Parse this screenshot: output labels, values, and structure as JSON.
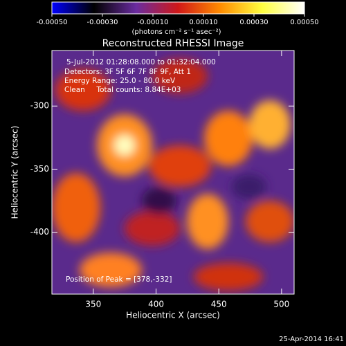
{
  "chart_data": {
    "type": "heatmap",
    "title": "Reconstructed RHESSI Image",
    "xlabel": "Heliocentric X (arcsec)",
    "ylabel": "Heliocentric Y (arcsec)",
    "xlim": [
      317,
      510
    ],
    "xticks": [
      350,
      400,
      450,
      500
    ],
    "ylim": [
      -449,
      -256
    ],
    "yticks": [
      -300,
      -350,
      -400
    ],
    "colorbar": {
      "label": "(photons cm⁻² s⁻¹ asec⁻²)",
      "lim": [
        -0.0005,
        0.0005
      ],
      "ticks": [
        {
          "value": -0.0005,
          "label": "-0.00050"
        },
        {
          "value": -0.0003,
          "label": "-0.00030"
        },
        {
          "value": -0.0001,
          "label": "-0.00010"
        },
        {
          "value": 0.0001,
          "label": "0.00010"
        },
        {
          "value": 0.0003,
          "label": "0.00030"
        },
        {
          "value": 0.0005,
          "label": "0.00050"
        }
      ],
      "colors": [
        "#0000ff",
        "#000000",
        "#6a2ca0",
        "#d01818",
        "#ff8c00",
        "#ffff40",
        "#ffffff"
      ]
    },
    "annotations": [
      "5-Jul-2012 01:28:08.000 to 01:32:04.000",
      "Detectors: 3F 5F 6F 7F 8F 9F, Att 1",
      "Energy Range: 25.0 - 80.0 keV",
      "Clean     Total counts: 8.84E+03"
    ],
    "peak_label": "Position of Peak = [378,-332]",
    "footer": "25-Apr-2014 16:41"
  }
}
